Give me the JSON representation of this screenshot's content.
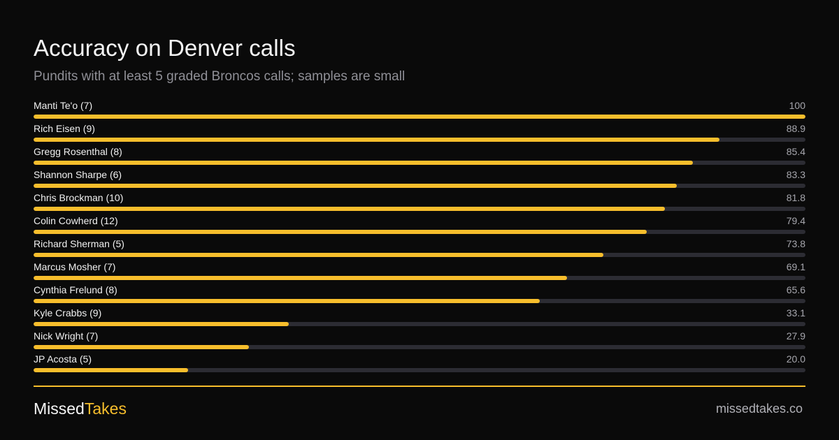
{
  "chart_data": {
    "type": "bar",
    "orientation": "horizontal",
    "title": "Accuracy on Denver calls",
    "subtitle": "Pundits with at least 5 graded Broncos calls; samples are small",
    "xlim": [
      0,
      100
    ],
    "grid": false,
    "bar_color": "#f7be2c",
    "track_color": "#2c2c33",
    "categories": [
      "Manti Te'o (7)",
      "Rich Eisen (9)",
      "Gregg Rosenthal (8)",
      "Shannon Sharpe (6)",
      "Chris Brockman (10)",
      "Colin Cowherd (12)",
      "Richard Sherman (5)",
      "Marcus Mosher (7)",
      "Cynthia Frelund (8)",
      "Kyle Crabbs (9)",
      "Nick Wright (7)",
      "JP Acosta (5)"
    ],
    "values": [
      100,
      88.9,
      85.4,
      83.3,
      81.8,
      79.4,
      73.8,
      69.1,
      65.6,
      33.1,
      27.9,
      20.0
    ],
    "value_labels": [
      "100",
      "88.9",
      "85.4",
      "83.3",
      "81.8",
      "79.4",
      "73.8",
      "69.1",
      "65.6",
      "33.1",
      "27.9",
      "20.0"
    ]
  },
  "footer": {
    "brand_part1": "Missed",
    "brand_part2": "Takes",
    "site": "missedtakes.co"
  },
  "colors": {
    "background": "#0a0a0a",
    "accent": "#f7be2c"
  }
}
